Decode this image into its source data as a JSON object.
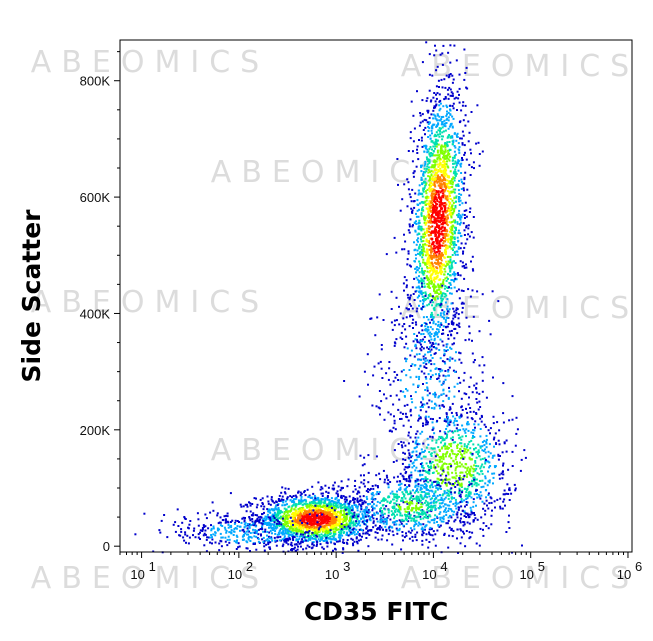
{
  "watermark_text": "ABEOMICS",
  "chart_data": {
    "type": "scatter",
    "style": "flow-cytometry pseudocolor density plot",
    "xlabel": "CD35 FITC",
    "ylabel": "Side Scatter",
    "x_scale": "log",
    "xlim": [
      6,
      1100000
    ],
    "ylim": [
      -10000,
      870000
    ],
    "x_ticks": [
      {
        "value": 10,
        "label": "10",
        "exp": "1"
      },
      {
        "value": 100,
        "label": "10",
        "exp": "2"
      },
      {
        "value": 1000,
        "label": "10",
        "exp": "3"
      },
      {
        "value": 10000,
        "label": "10",
        "exp": "4"
      },
      {
        "value": 100000,
        "label": "10",
        "exp": "5"
      },
      {
        "value": 1000000,
        "label": "10",
        "exp": "6"
      }
    ],
    "y_ticks": [
      {
        "value": 0,
        "label": "0"
      },
      {
        "value": 200000,
        "label": "200K"
      },
      {
        "value": 400000,
        "label": "400K"
      },
      {
        "value": 600000,
        "label": "600K"
      },
      {
        "value": 800000,
        "label": "800K"
      }
    ],
    "color_scale": [
      "#0000cc",
      "#00a8ff",
      "#00e0b0",
      "#80ff00",
      "#ffff00",
      "#ff8000",
      "#ff0000"
    ],
    "populations": [
      {
        "name": "CD35-negative low-SSC",
        "x_center": 650,
        "y_center": 45000,
        "density": "high"
      },
      {
        "name": "CD35-positive high-SSC",
        "x_center": 11000,
        "y_center": 560000,
        "density": "high"
      },
      {
        "name": "CD35-positive low-SSC",
        "x_center": 15000,
        "y_center": 120000,
        "density": "medium"
      }
    ]
  }
}
